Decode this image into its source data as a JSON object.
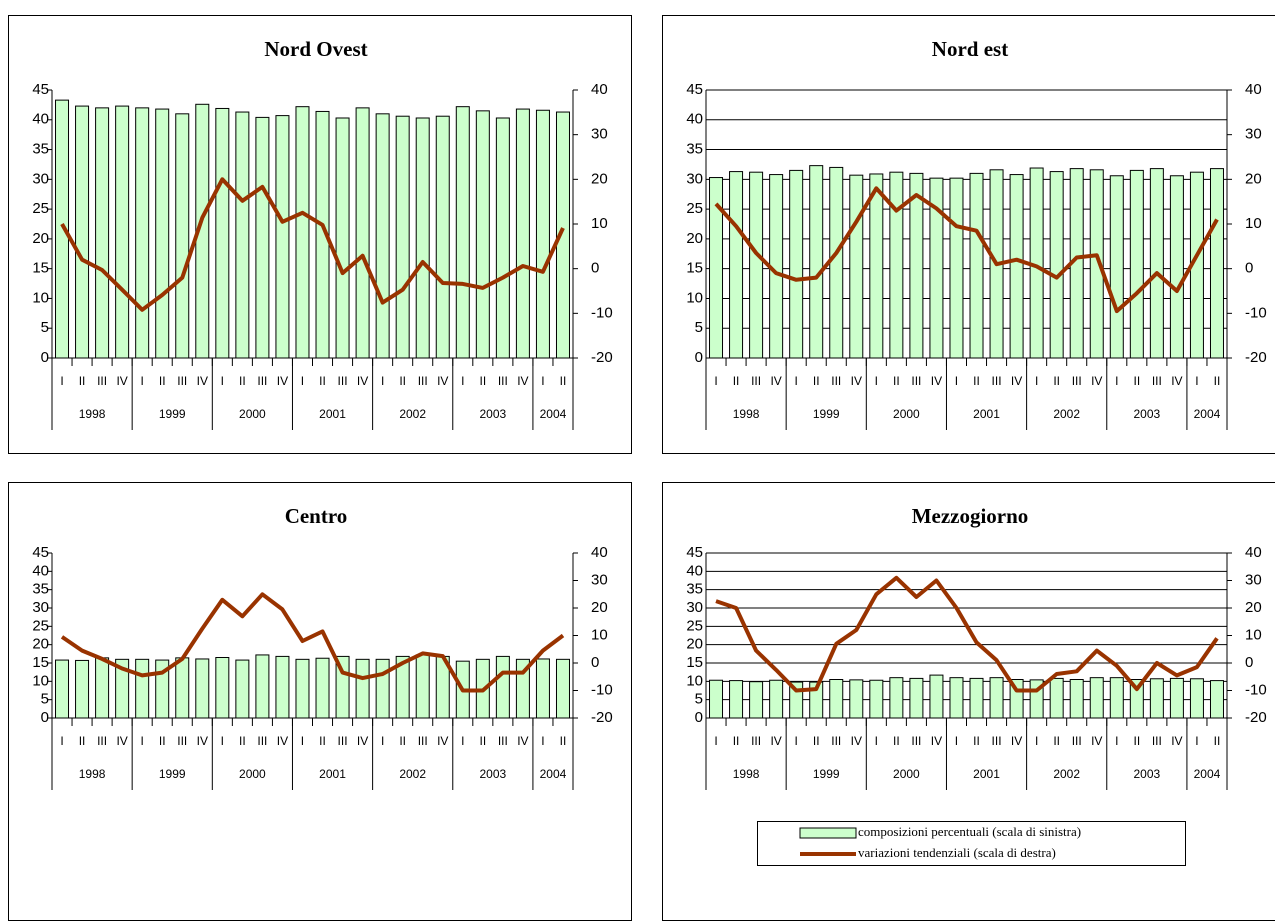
{
  "chart_data": [
    {
      "type": "combo",
      "title": "Nord Ovest",
      "grid": false,
      "categories": [
        "I",
        "II",
        "III",
        "IV",
        "I",
        "II",
        "III",
        "IV",
        "I",
        "II",
        "III",
        "IV",
        "I",
        "II",
        "III",
        "IV",
        "I",
        "II",
        "III",
        "IV",
        "I",
        "II",
        "III",
        "IV",
        "I",
        "II"
      ],
      "category_groups": [
        {
          "label": "1998",
          "span": 4
        },
        {
          "label": "1999",
          "span": 4
        },
        {
          "label": "2000",
          "span": 4
        },
        {
          "label": "2001",
          "span": 4
        },
        {
          "label": "2002",
          "span": 4
        },
        {
          "label": "2003",
          "span": 4
        },
        {
          "label": "2004",
          "span": 2
        }
      ],
      "ylim": [
        0,
        45
      ],
      "yticks": [
        0,
        5,
        10,
        15,
        20,
        25,
        30,
        35,
        40,
        45
      ],
      "y2lim": [
        -20,
        40
      ],
      "y2ticks": [
        -20,
        -10,
        0,
        10,
        20,
        30,
        40
      ],
      "series": [
        {
          "type": "bar",
          "color": "#ccffcc",
          "values": [
            43.3,
            42.3,
            42,
            42.3,
            42,
            41.8,
            41,
            42.6,
            41.9,
            41.3,
            40.4,
            40.7,
            42.2,
            41.4,
            40.3,
            42,
            41,
            40.6,
            40.3,
            40.6,
            42.2,
            41.5,
            40.3,
            41.8,
            41.6,
            41.3
          ]
        },
        {
          "type": "line",
          "axis": "y2",
          "color": "#993300",
          "values": [
            10,
            2,
            -0.3,
            -4.7,
            -9.2,
            -5.9,
            -2,
            11.4,
            20,
            15.2,
            18.3,
            10.5,
            12.5,
            9.8,
            -1,
            2.9,
            -7.6,
            -4.7,
            1.5,
            -3.2,
            -3.4,
            -4.3,
            -2,
            0.6,
            -0.7,
            9.1
          ]
        }
      ]
    },
    {
      "type": "combo",
      "title": "Nord est",
      "grid": true,
      "categories": [
        "I",
        "II",
        "III",
        "IV",
        "I",
        "II",
        "III",
        "IV",
        "I",
        "II",
        "III",
        "IV",
        "I",
        "II",
        "III",
        "IV",
        "I",
        "II",
        "III",
        "IV",
        "I",
        "II",
        "III",
        "IV",
        "I",
        "II"
      ],
      "category_groups": [
        {
          "label": "1998",
          "span": 4
        },
        {
          "label": "1999",
          "span": 4
        },
        {
          "label": "2000",
          "span": 4
        },
        {
          "label": "2001",
          "span": 4
        },
        {
          "label": "2002",
          "span": 4
        },
        {
          "label": "2003",
          "span": 4
        },
        {
          "label": "2004",
          "span": 2
        }
      ],
      "ylim": [
        0,
        45
      ],
      "yticks": [
        0,
        5,
        10,
        15,
        20,
        25,
        30,
        35,
        40,
        45
      ],
      "y2lim": [
        -20,
        40
      ],
      "y2ticks": [
        -20,
        -10,
        0,
        10,
        20,
        30,
        40
      ],
      "series": [
        {
          "type": "bar",
          "color": "#ccffcc",
          "values": [
            30.3,
            31.3,
            31.2,
            30.8,
            31.5,
            32.3,
            32,
            30.7,
            30.9,
            31.2,
            31,
            30.2,
            30.2,
            31,
            31.6,
            30.8,
            31.9,
            31.3,
            31.8,
            31.6,
            30.6,
            31.5,
            31.8,
            30.6,
            31.2,
            31.8
          ]
        },
        {
          "type": "line",
          "axis": "y2",
          "color": "#993300",
          "values": [
            14.5,
            9.5,
            3.5,
            -1,
            -2.5,
            -2,
            3.5,
            10.5,
            18,
            13,
            16.5,
            13.5,
            9.5,
            8.5,
            1,
            2,
            0.5,
            -2,
            2.5,
            3,
            -9.5,
            -5.5,
            -1,
            -5,
            3,
            11
          ]
        }
      ]
    },
    {
      "type": "combo",
      "title": "Centro",
      "grid": false,
      "categories": [
        "I",
        "II",
        "III",
        "IV",
        "I",
        "II",
        "III",
        "IV",
        "I",
        "II",
        "III",
        "IV",
        "I",
        "II",
        "III",
        "IV",
        "I",
        "II",
        "III",
        "IV",
        "I",
        "II",
        "III",
        "IV",
        "I",
        "II"
      ],
      "category_groups": [
        {
          "label": "1998",
          "span": 4
        },
        {
          "label": "1999",
          "span": 4
        },
        {
          "label": "2000",
          "span": 4
        },
        {
          "label": "2001",
          "span": 4
        },
        {
          "label": "2002",
          "span": 4
        },
        {
          "label": "2003",
          "span": 4
        },
        {
          "label": "2004",
          "span": 2
        }
      ],
      "ylim": [
        0,
        45
      ],
      "yticks": [
        0,
        5,
        10,
        15,
        20,
        25,
        30,
        35,
        40,
        45
      ],
      "y2lim": [
        -20,
        40
      ],
      "y2ticks": [
        -20,
        -10,
        0,
        10,
        20,
        30,
        40
      ],
      "series": [
        {
          "type": "bar",
          "color": "#ccffcc",
          "values": [
            15.8,
            15.7,
            16.4,
            16,
            16,
            15.8,
            16.4,
            16.1,
            16.5,
            15.8,
            17.2,
            16.8,
            16,
            16.3,
            16.8,
            16,
            16,
            16.8,
            17.2,
            16.8,
            15.5,
            16,
            16.8,
            16,
            16.1,
            16
          ]
        },
        {
          "type": "line",
          "axis": "y2",
          "color": "#993300",
          "values": [
            9.5,
            4.5,
            1.5,
            -2,
            -4.5,
            -3.5,
            1.5,
            12.5,
            23,
            17,
            25,
            19.5,
            8,
            11.5,
            -3.5,
            -5.5,
            -4,
            0,
            3.5,
            2.5,
            -10,
            -10,
            -3.5,
            -3.5,
            4.5,
            10
          ]
        }
      ]
    },
    {
      "type": "combo",
      "title": "Mezzogiorno",
      "grid": true,
      "legend": "bottom",
      "categories": [
        "I",
        "II",
        "III",
        "IV",
        "I",
        "II",
        "III",
        "IV",
        "I",
        "II",
        "III",
        "IV",
        "I",
        "II",
        "III",
        "IV",
        "I",
        "II",
        "III",
        "IV",
        "I",
        "II",
        "III",
        "IV",
        "I",
        "II"
      ],
      "category_groups": [
        {
          "label": "1998",
          "span": 4
        },
        {
          "label": "1999",
          "span": 4
        },
        {
          "label": "2000",
          "span": 4
        },
        {
          "label": "2001",
          "span": 4
        },
        {
          "label": "2002",
          "span": 4
        },
        {
          "label": "2003",
          "span": 4
        },
        {
          "label": "2004",
          "span": 2
        }
      ],
      "ylim": [
        0,
        45
      ],
      "yticks": [
        0,
        5,
        10,
        15,
        20,
        25,
        30,
        35,
        40,
        45
      ],
      "y2lim": [
        -20,
        40
      ],
      "y2ticks": [
        -20,
        -10,
        0,
        10,
        20,
        30,
        40
      ],
      "series": [
        {
          "name": "composizioni percentuali (scala di sinistra)",
          "type": "bar",
          "color": "#ccffcc",
          "values": [
            10.3,
            10.2,
            9.9,
            10.3,
            9.8,
            9.8,
            10.5,
            10.4,
            10.3,
            11,
            10.8,
            11.7,
            11,
            10.8,
            11,
            10.5,
            10.4,
            10.8,
            10.5,
            11,
            11,
            10.5,
            10.7,
            10.8,
            10.7,
            10.2
          ]
        },
        {
          "name": "variazioni tendenziali (scala di destra)",
          "type": "line",
          "axis": "y2",
          "color": "#993300",
          "values": [
            22.5,
            20,
            4.5,
            -2.5,
            -10,
            -9.5,
            7,
            12,
            25,
            31,
            24,
            30,
            20,
            7.5,
            1,
            -10,
            -10,
            -4,
            -3,
            4.5,
            -1,
            -9.5,
            0,
            -4.5,
            -1.5,
            9
          ]
        }
      ]
    }
  ]
}
